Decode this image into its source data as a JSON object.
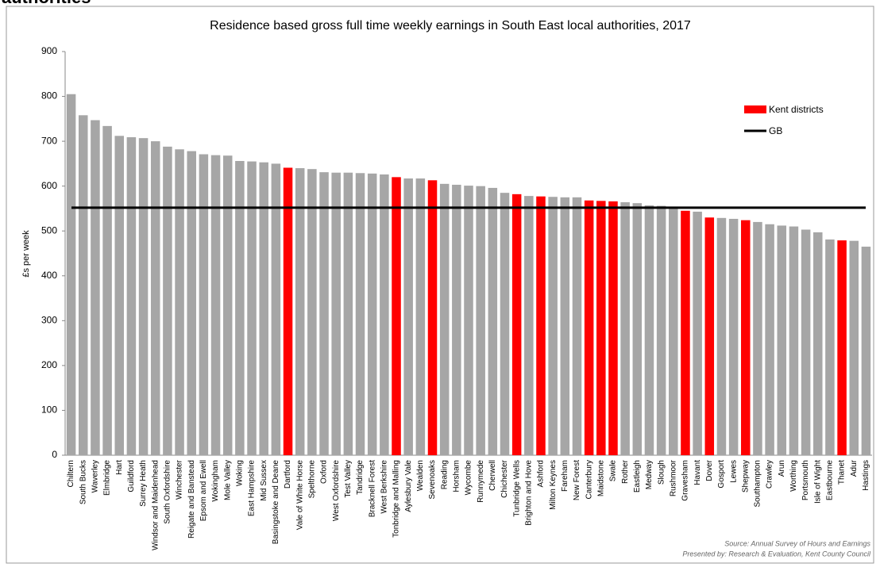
{
  "header_fragment": "authorities",
  "chart_data": {
    "type": "bar",
    "title": "Residence based gross full time weekly earnings in South East local authorities, 2017",
    "ylabel": "£s per week",
    "categories": [
      "Chiltern",
      "South Bucks",
      "Waverley",
      "Elmbridge",
      "Hart",
      "Guildford",
      "Surrey Heath",
      "Windsor and Maidenhead",
      "South Oxfordshire",
      "Winchester",
      "Reigate and Banstead",
      "Epsom and Ewell",
      "Wokingham",
      "Mole Valley",
      "Woking",
      "East Hampshire",
      "Mid Sussex",
      "Basingstoke and Deane",
      "Dartford",
      "Vale of White Horse",
      "Spelthorne",
      "Oxford",
      "West Oxfordshire",
      "Test Valley",
      "Tandridge",
      "Bracknell Forest",
      "West Berkshire",
      "Tonbridge and Malling",
      "Aylesbury Vale",
      "Wealden",
      "Sevenoaks",
      "Reading",
      "Horsham",
      "Wycombe",
      "Runnymede",
      "Cherwell",
      "Chichester",
      "Tunbridge Wells",
      "Brighton and Hove",
      "Ashford",
      "Milton Keynes",
      "Fareham",
      "New Forest",
      "Canterbury",
      "Maidstone",
      "Swale",
      "Rother",
      "Eastleigh",
      "Medway",
      "Slough",
      "Rushmoor",
      "Gravesham",
      "Havant",
      "Dover",
      "Gosport",
      "Lewes",
      "Shepway",
      "Southampton",
      "Crawley",
      "Arun",
      "Worthing",
      "Portsmouth",
      "Isle of Wight",
      "Eastbourne",
      "Thanet",
      "Adur",
      "Hastings"
    ],
    "values": [
      805,
      758,
      747,
      734,
      712,
      709,
      707,
      700,
      688,
      682,
      678,
      671,
      669,
      668,
      656,
      655,
      653,
      650,
      641,
      640,
      638,
      631,
      630,
      630,
      629,
      628,
      626,
      620,
      617,
      617,
      613,
      605,
      603,
      601,
      600,
      596,
      585,
      582,
      578,
      577,
      576,
      575,
      575,
      568,
      567,
      566,
      564,
      562,
      557,
      556,
      554,
      545,
      543,
      530,
      529,
      527,
      524,
      520,
      515,
      512,
      510,
      503,
      497,
      481,
      479,
      478,
      465
    ],
    "kent": [
      false,
      false,
      false,
      false,
      false,
      false,
      false,
      false,
      false,
      false,
      false,
      false,
      false,
      false,
      false,
      false,
      false,
      false,
      true,
      false,
      false,
      false,
      false,
      false,
      false,
      false,
      false,
      true,
      false,
      false,
      true,
      false,
      false,
      false,
      false,
      false,
      false,
      true,
      false,
      true,
      false,
      false,
      false,
      true,
      true,
      true,
      false,
      false,
      false,
      false,
      false,
      true,
      false,
      true,
      false,
      false,
      true,
      false,
      false,
      false,
      false,
      false,
      false,
      false,
      true,
      false,
      false
    ],
    "color": "#a6a6a6",
    "kent_series": {
      "name": "Kent districts",
      "color": "#ff0000"
    },
    "reference_line": {
      "name": "GB",
      "value": 552,
      "color": "#000000"
    },
    "ylim": [
      0,
      900
    ],
    "yticks": [
      0,
      100,
      200,
      300,
      400,
      500,
      600,
      700,
      800,
      900
    ],
    "source": [
      "Source: Annual Survey of Hours and Earnings",
      "Presented by: Research & Evaluation, Kent County Council"
    ]
  }
}
